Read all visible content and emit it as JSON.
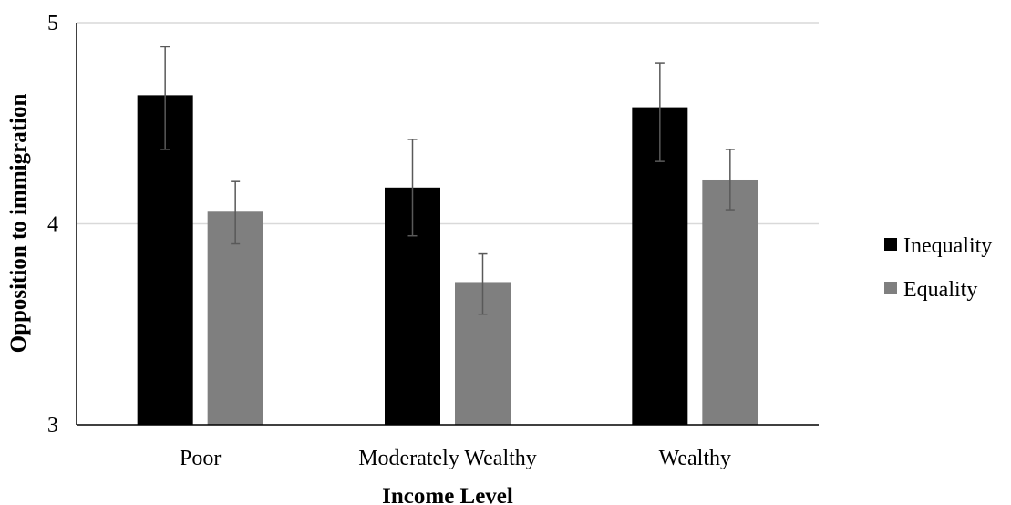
{
  "chart_data": {
    "type": "bar",
    "title": "",
    "xlabel": "Income Level",
    "ylabel": "Opposition to immigration",
    "categories": [
      "Poor",
      "Moderately Wealthy",
      "Wealthy"
    ],
    "ylim": [
      3,
      5
    ],
    "yticks": [
      "3",
      "4",
      "5"
    ],
    "grid": true,
    "legend_position": "right",
    "series": [
      {
        "name": "Inequality",
        "color": "#000000",
        "values": [
          4.64,
          4.18,
          4.58
        ],
        "error_low": [
          4.37,
          3.94,
          4.31
        ],
        "error_high": [
          4.88,
          4.42,
          4.8
        ]
      },
      {
        "name": "Equality",
        "color": "#7f7f7f",
        "values": [
          4.06,
          3.71,
          4.22
        ],
        "error_low": [
          3.9,
          3.55,
          4.07
        ],
        "error_high": [
          4.21,
          3.85,
          4.37
        ]
      }
    ]
  }
}
